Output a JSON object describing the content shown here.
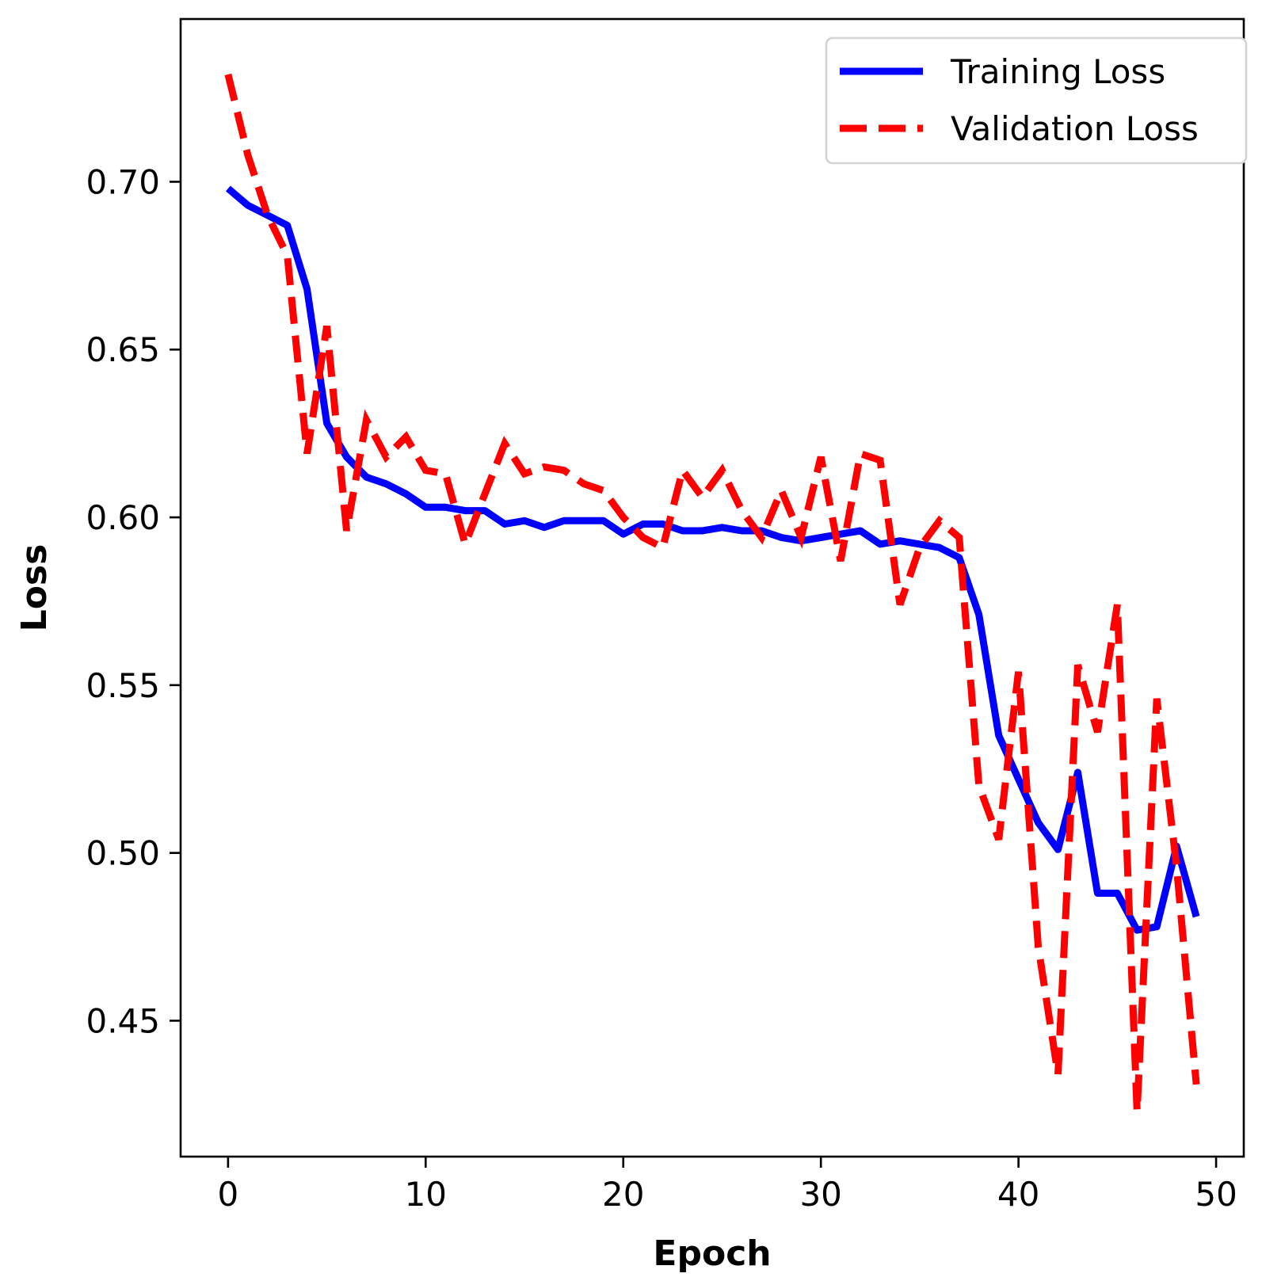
{
  "chart_data": {
    "type": "line",
    "title": "",
    "xlabel": "Epoch",
    "ylabel": "Loss",
    "xlim": [
      -2.4,
      51.4
    ],
    "ylim": [
      0.4095,
      0.7485
    ],
    "xticks": [
      0,
      10,
      20,
      30,
      40,
      50
    ],
    "xtick_labels": [
      "0",
      "10",
      "20",
      "30",
      "40",
      "50"
    ],
    "yticks": [
      0.45,
      0.5,
      0.55,
      0.6,
      0.65,
      0.7
    ],
    "ytick_labels": [
      "0.45",
      "0.50",
      "0.55",
      "0.60",
      "0.65",
      "0.70"
    ],
    "grid": false,
    "legend_position": "upper-right",
    "x": [
      0,
      1,
      2,
      3,
      4,
      5,
      6,
      7,
      8,
      9,
      10,
      11,
      12,
      13,
      14,
      15,
      16,
      17,
      18,
      19,
      20,
      21,
      22,
      23,
      24,
      25,
      26,
      27,
      28,
      29,
      30,
      31,
      32,
      33,
      34,
      35,
      36,
      37,
      38,
      39,
      40,
      41,
      42,
      43,
      44,
      45,
      46,
      47,
      48,
      49
    ],
    "series": [
      {
        "name": "Training Loss",
        "color": "#0000ff",
        "style": "solid",
        "values": [
          0.698,
          0.693,
          0.69,
          0.687,
          0.668,
          0.628,
          0.618,
          0.612,
          0.61,
          0.607,
          0.603,
          0.603,
          0.602,
          0.602,
          0.598,
          0.599,
          0.597,
          0.599,
          0.599,
          0.599,
          0.595,
          0.598,
          0.598,
          0.596,
          0.596,
          0.597,
          0.596,
          0.596,
          0.594,
          0.593,
          0.594,
          0.595,
          0.596,
          0.592,
          0.593,
          0.592,
          0.591,
          0.588,
          0.571,
          0.535,
          0.522,
          0.509,
          0.501,
          0.524,
          0.488,
          0.488,
          0.477,
          0.478,
          0.502,
          0.481
        ]
      },
      {
        "name": "Validation Loss",
        "color": "#ff0000",
        "style": "dashed",
        "values": [
          0.732,
          0.708,
          0.69,
          0.678,
          0.619,
          0.657,
          0.596,
          0.629,
          0.618,
          0.624,
          0.614,
          0.613,
          0.592,
          0.607,
          0.622,
          0.613,
          0.615,
          0.614,
          0.61,
          0.608,
          0.6,
          0.594,
          0.591,
          0.614,
          0.606,
          0.614,
          0.602,
          0.594,
          0.608,
          0.594,
          0.618,
          0.587,
          0.619,
          0.617,
          0.574,
          0.591,
          0.599,
          0.594,
          0.52,
          0.504,
          0.554,
          0.472,
          0.434,
          0.556,
          0.536,
          0.574,
          0.423,
          0.546,
          0.496,
          0.431
        ]
      }
    ]
  }
}
